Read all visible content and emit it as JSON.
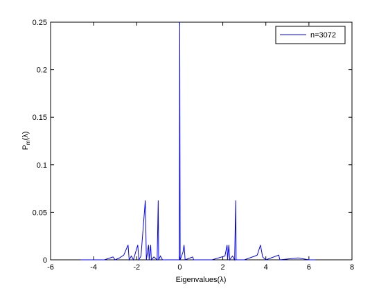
{
  "chart_data": {
    "type": "line",
    "xlabel": "Eigenvalues(λ)",
    "ylabel": [
      "P",
      "m",
      "(λ)"
    ],
    "x": [
      -4.6,
      -3.5,
      -3.1,
      -3.0,
      -2.8,
      -2.6,
      -2.4,
      -2.35,
      -2.25,
      -2.15,
      -2.05,
      -1.95,
      -1.9,
      -1.8,
      -1.6,
      -1.55,
      -1.45,
      -1.42,
      -1.35,
      -1.32,
      -1.2,
      -1.05,
      -1.0,
      -0.98,
      -0.9,
      -0.8,
      -0.3,
      -0.02,
      0,
      0.02,
      0.15,
      0.2,
      0.25,
      0.6,
      0.65,
      1.5,
      2.1,
      2.2,
      2.22,
      2.28,
      2.32,
      2.45,
      2.55,
      2.6,
      2.62,
      3.0,
      3.5,
      3.6,
      3.75,
      3.85,
      4.0,
      4.6,
      4.65,
      5.5,
      6.0,
      6.3
    ],
    "series": [
      {
        "name": "n=3072",
        "color": "#0000ff",
        "values": [
          0,
          0,
          0.003,
          0,
          0.002,
          0.005,
          0.0156,
          0,
          0.004,
          0,
          0.008,
          0.0156,
          0,
          0.004,
          0.0625,
          0,
          0.0156,
          0,
          0.0156,
          0,
          0.003,
          0,
          0.0625,
          0,
          0.004,
          0,
          0,
          0,
          0.25,
          0,
          0.008,
          0.0156,
          0,
          0.003,
          0,
          0,
          0.004,
          0.0156,
          0,
          0.0156,
          0,
          0.004,
          0,
          0.0625,
          0,
          0,
          0.004,
          0.005,
          0.0156,
          0.003,
          0,
          0.005,
          0,
          0.002,
          0,
          0
        ]
      }
    ],
    "xlim": [
      -6,
      8
    ],
    "xticks": [
      -6,
      -4,
      -2,
      0,
      2,
      4,
      6,
      8
    ],
    "ylim": [
      0,
      0.25
    ],
    "yticks": [
      0,
      0.05,
      0.1,
      0.15,
      0.2,
      0.25
    ],
    "legend": "top-right"
  }
}
